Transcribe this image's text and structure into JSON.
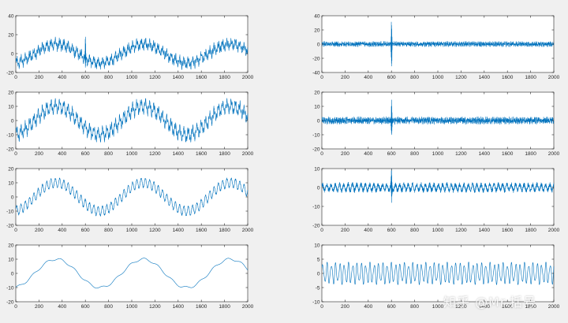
{
  "figure": {
    "background": "#f0f0f0",
    "line_color": "#0072bd",
    "watermark": "知乎 @Mr.括号"
  },
  "chart_data": [
    {
      "type": "line",
      "grid": false,
      "xlim": [
        0,
        2000
      ],
      "ylim": [
        -20,
        40
      ],
      "xticks": [
        0,
        200,
        400,
        600,
        800,
        1000,
        1200,
        1400,
        1600,
        1800,
        2000
      ],
      "yticks": [
        -20,
        0,
        20,
        40
      ],
      "series": [
        {
          "n": 2000,
          "components": [
            {
              "kind": "sine",
              "amp": 10,
              "period": 750,
              "phase": -1.35
            },
            {
              "kind": "sine",
              "amp": 3.5,
              "period": 37,
              "phase": 0.4
            },
            {
              "kind": "sine",
              "amp": 2.5,
              "period": 11.3,
              "phase": 1.1
            },
            {
              "kind": "noise",
              "amp": 2.2
            },
            {
              "kind": "spike",
              "center": 600,
              "width": 3,
              "amp": 18
            }
          ]
        }
      ]
    },
    {
      "type": "line",
      "grid": false,
      "xlim": [
        0,
        2000
      ],
      "ylim": [
        -40,
        40
      ],
      "xticks": [
        0,
        200,
        400,
        600,
        800,
        1000,
        1200,
        1400,
        1600,
        1800,
        2000
      ],
      "yticks": [
        -40,
        -20,
        0,
        20,
        40
      ],
      "series": [
        {
          "n": 2000,
          "components": [
            {
              "kind": "sine",
              "amp": 1.5,
              "period": 11.3,
              "phase": 1.1
            },
            {
              "kind": "noise",
              "amp": 2.5
            },
            {
              "kind": "spike",
              "center": 600,
              "width": 3,
              "amp": 36
            }
          ]
        }
      ]
    },
    {
      "type": "line",
      "grid": false,
      "xlim": [
        0,
        2000
      ],
      "ylim": [
        -20,
        20
      ],
      "xticks": [
        0,
        200,
        400,
        600,
        800,
        1000,
        1200,
        1400,
        1600,
        1800,
        2000
      ],
      "yticks": [
        -20,
        -10,
        0,
        10,
        20
      ],
      "series": [
        {
          "n": 2000,
          "components": [
            {
              "kind": "sine",
              "amp": 10,
              "period": 750,
              "phase": -1.35
            },
            {
              "kind": "sine",
              "amp": 3.5,
              "period": 37,
              "phase": 0.4
            },
            {
              "kind": "sine",
              "amp": 2.0,
              "period": 11.3,
              "phase": 1.1
            },
            {
              "kind": "noise",
              "amp": 1.2
            }
          ]
        }
      ]
    },
    {
      "type": "line",
      "grid": false,
      "xlim": [
        0,
        2000
      ],
      "ylim": [
        -20,
        20
      ],
      "xticks": [
        0,
        200,
        400,
        600,
        800,
        1000,
        1200,
        1400,
        1600,
        1800,
        2000
      ],
      "yticks": [
        -20,
        -10,
        0,
        10,
        20
      ],
      "series": [
        {
          "n": 2000,
          "components": [
            {
              "kind": "sine",
              "amp": 1.0,
              "period": 11.3,
              "phase": 1.1
            },
            {
              "kind": "noise",
              "amp": 1.8
            },
            {
              "kind": "spike",
              "center": 600,
              "width": 3,
              "amp": 14
            }
          ]
        }
      ]
    },
    {
      "type": "line",
      "grid": false,
      "xlim": [
        0,
        2000
      ],
      "ylim": [
        -20,
        20
      ],
      "xticks": [
        0,
        200,
        400,
        600,
        800,
        1000,
        1200,
        1400,
        1600,
        1800,
        2000
      ],
      "yticks": [
        -20,
        -10,
        0,
        10,
        20
      ],
      "series": [
        {
          "n": 2000,
          "components": [
            {
              "kind": "sine",
              "amp": 10,
              "period": 750,
              "phase": -1.35
            },
            {
              "kind": "sine",
              "amp": 3.2,
              "period": 37,
              "phase": 0.4
            },
            {
              "kind": "noise",
              "amp": 0.6
            }
          ]
        }
      ]
    },
    {
      "type": "line",
      "grid": false,
      "xlim": [
        0,
        2000
      ],
      "ylim": [
        -20,
        10
      ],
      "xticks": [
        0,
        200,
        400,
        600,
        800,
        1000,
        1200,
        1400,
        1600,
        1800,
        2000
      ],
      "yticks": [
        -20,
        -10,
        0,
        10
      ],
      "series": [
        {
          "n": 2000,
          "components": [
            {
              "kind": "sine",
              "amp": 1.6,
              "period": 37,
              "phase": 0.9
            },
            {
              "kind": "noise",
              "amp": 1.2
            },
            {
              "kind": "spike",
              "center": 600,
              "width": 3,
              "amp": 10
            }
          ]
        }
      ]
    },
    {
      "type": "line",
      "grid": false,
      "xlim": [
        0,
        2000
      ],
      "ylim": [
        -20,
        20
      ],
      "xticks": [
        0,
        200,
        400,
        600,
        800,
        1000,
        1200,
        1400,
        1600,
        1800,
        2000
      ],
      "yticks": [
        -20,
        -10,
        0,
        10,
        20
      ],
      "series": [
        {
          "n": 2000,
          "components": [
            {
              "kind": "sine",
              "amp": 10,
              "period": 750,
              "phase": -1.35
            },
            {
              "kind": "sine",
              "amp": 0.8,
              "period": 120,
              "phase": 0.2
            }
          ]
        }
      ]
    },
    {
      "type": "line",
      "grid": false,
      "xlim": [
        0,
        2000
      ],
      "ylim": [
        -10,
        10
      ],
      "xticks": [
        0,
        200,
        400,
        600,
        800,
        1000,
        1200,
        1400,
        1600,
        1800,
        2000
      ],
      "yticks": [
        -10,
        -5,
        0,
        5,
        10
      ],
      "series": [
        {
          "n": 2000,
          "components": [
            {
              "kind": "sine",
              "amp": 3.2,
              "period": 37,
              "phase": 0.4
            },
            {
              "kind": "sine",
              "amp": 0.8,
              "period": 23,
              "phase": 1.7
            }
          ]
        }
      ]
    }
  ]
}
